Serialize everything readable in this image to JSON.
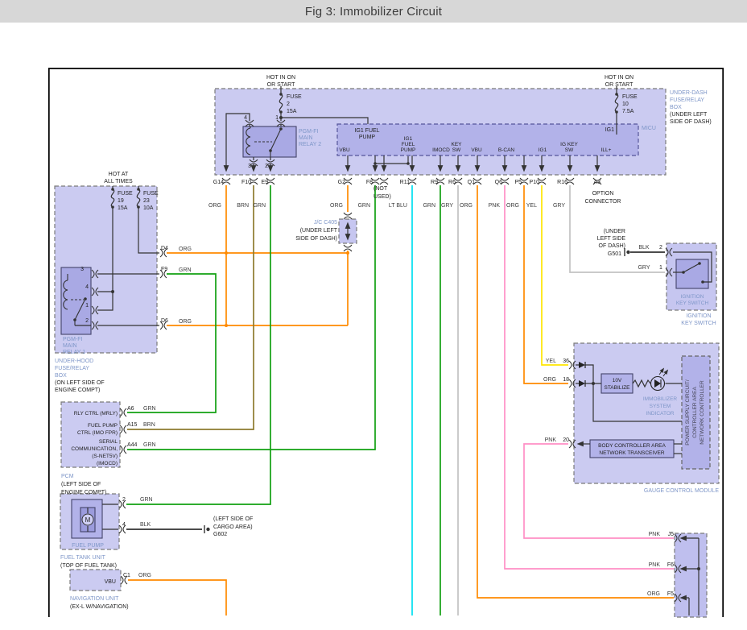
{
  "title": "Fig 3: Immobilizer Circuit",
  "colors": {
    "org": "#FF8A00",
    "brn": "#8D7B2E",
    "grn": "#12A012",
    "ltblu": "#00DFF0",
    "gry": "#C2C2C2",
    "pnk": "#FF8FC5",
    "yel": "#FFE600",
    "blk": "#333333",
    "blue_label": "#7E96C8"
  },
  "power": {
    "hot_start_1": [
      "HOT IN ON",
      "OR START"
    ],
    "hot_start_2": [
      "HOT IN ON",
      "OR START"
    ],
    "hot_all": [
      "HOT AT",
      "ALL TIMES"
    ]
  },
  "fuses": {
    "f2": [
      "FUSE",
      "2",
      "15A"
    ],
    "f10": [
      "FUSE",
      "10",
      "7.5A"
    ],
    "f19": [
      "FUSE",
      "19",
      "15A"
    ],
    "f23": [
      "FUSE",
      "23",
      "10A"
    ]
  },
  "underdash": {
    "name": [
      "UNDER-DASH",
      "FUSE/RELAY",
      "BOX"
    ],
    "loc": [
      "(UNDER LEFT",
      "SIDE OF DASH)"
    ],
    "micu": "MICU",
    "micu_top": [
      "IG1 FUEL",
      "PUMP"
    ],
    "ig1": "IG1",
    "bottom": {
      "vbu1": "VBU",
      "igfp": [
        "IG1",
        "FUEL",
        "PUMP"
      ],
      "imocd": "IMOCD",
      "keysw": [
        "KEY",
        "SW"
      ],
      "vbu2": "VBU",
      "bcan": "B-CAN",
      "ig1": "IG1",
      "igkeysw": [
        "IG KEY",
        "SW"
      ],
      "ill": "ILL+"
    }
  },
  "relay2": {
    "name": [
      "PGM-FI",
      "MAIN",
      "RELAY 2"
    ],
    "pins": {
      "p4": "4",
      "p1": "1",
      "p3": "3",
      "p2": "2"
    }
  },
  "relay1": {
    "name": [
      "PGM-FI",
      "MAIN",
      "RELAY 1"
    ],
    "pins": {
      "p3": "3",
      "p4": "4",
      "p1": "1",
      "p2": "2"
    }
  },
  "underhood": {
    "name": [
      "UNDER-HOOD",
      "FUSE/RELAY",
      "BOX"
    ],
    "loc": [
      "(ON LEFT SIDE OF",
      "ENGINE COMPT)"
    ],
    "d4": {
      "pin": "D4",
      "color": "ORG"
    },
    "f9": {
      "pin": "F9",
      "color": "GRN"
    },
    "d6": {
      "pin": "D6",
      "color": "ORG"
    }
  },
  "row": [
    {
      "pin": "G14",
      "color": "ORG"
    },
    {
      "pin": "F10",
      "color": "BRN"
    },
    {
      "pin": "E9",
      "color": "GRN"
    },
    {
      "pin": "G2",
      "color": "ORG"
    },
    {
      "pin": "F8",
      "color": "GRN"
    },
    {
      "pin": "R11",
      "color": "LT BLU"
    },
    {
      "pin": "R9",
      "color": "GRN"
    },
    {
      "pin": "R6",
      "color": "GRY"
    },
    {
      "pin": "Q1",
      "color": "ORG"
    },
    {
      "pin": "Q6",
      "color": "PNK"
    },
    {
      "pin": "P5",
      "color": "ORG"
    },
    {
      "pin": "P10",
      "color": "YEL"
    },
    {
      "pin": "R16",
      "color": "GRY"
    }
  ],
  "not_used": [
    "(NOT",
    "USED)"
  ],
  "a3": {
    "pin": "A3",
    "label": [
      "OPTION",
      "CONNECTOR"
    ]
  },
  "jc": {
    "name": "J/C C405",
    "loc": [
      "(UNDER LEFT",
      "SIDE OF DASH)"
    ]
  },
  "g501": {
    "loc": [
      "(UNDER",
      "LEFT SIDE",
      "OF DASH)"
    ],
    "name": "G501",
    "wire": "BLK",
    "pin": "2"
  },
  "ign": {
    "gry": "GRY",
    "pin1": "1",
    "inner": [
      "IGNITION",
      "KEY SWITCH"
    ],
    "outer": [
      "IGNITION",
      "KEY SWITCH"
    ]
  },
  "gauge": {
    "name": "GAUGE CONTROL MODULE",
    "p36": {
      "color": "YEL",
      "pin": "36"
    },
    "p18": {
      "color": "ORG",
      "pin": "18"
    },
    "p20": {
      "color": "PNK",
      "pin": "20"
    },
    "stab": [
      "10V",
      "STABILIZE"
    ],
    "ind": [
      "IMMOBILIZER",
      "SYSTEM",
      "INDICATOR"
    ],
    "bcan": [
      "BODY CONTROLLER AREA",
      "NETWORK TRANSCEIVER"
    ],
    "ps": [
      "POWER SUPPLY CIRCUIT/",
      "CONTROLLER AREA",
      "NETWORK CONTROLLER"
    ]
  },
  "unit": {
    "j5": {
      "color": "PNK",
      "pin": "J5"
    },
    "f6": {
      "color": "PNK",
      "pin": "F6"
    },
    "f5": {
      "color": "ORG",
      "pin": "F5"
    }
  },
  "pcm": {
    "name": "PCM",
    "loc": [
      "(LEFT SIDE OF",
      "ENGINE COMPT)"
    ],
    "rows": {
      "rly": "RLY CTRL (MRLY)",
      "fp": [
        "FUEL PUMP",
        "CTRL (IMO FPR)"
      ],
      "serial": [
        "SERIAL",
        "COMMUNICATION,",
        "(S-NET5V)",
        "(IMOCD)"
      ]
    },
    "a6": {
      "pin": "A6",
      "color": "GRN"
    },
    "a15": {
      "pin": "A15",
      "color": "BRN"
    },
    "a44": {
      "pin": "A44",
      "color": "GRN"
    }
  },
  "fuel": {
    "pump": "FUEL PUMP",
    "motor": "M",
    "p2": {
      "pin": "2",
      "color": "GRN"
    },
    "p4": {
      "pin": "4",
      "color": "BLK"
    },
    "name": "FUEL TANK UNIT",
    "loc": "(TOP OF FUEL TANK)"
  },
  "g602": {
    "loc": [
      "(LEFT SIDE OF",
      "CARGO AREA)"
    ],
    "name": "G602"
  },
  "nav": {
    "vbu": "VBU",
    "pin": "C1",
    "color": "ORG",
    "name": "NAVIGATION UNIT",
    "loc": "(EX-L W/NAVIGATION)"
  }
}
